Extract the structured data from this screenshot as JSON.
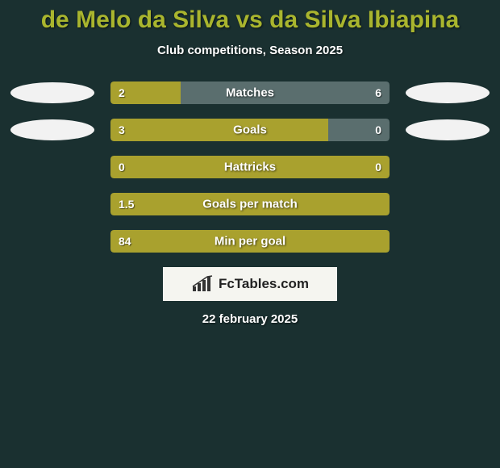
{
  "background_color": "#1a3030",
  "title": {
    "text": "de Melo da Silva vs da Silva Ibiapina",
    "color": "#a9b52e",
    "fontsize": 30
  },
  "subtitle": "Club competitions, Season 2025",
  "bar_colors": {
    "olive": "#a9a12e",
    "track": "#5a6e6e"
  },
  "ellipse_color": "#f2f2f2",
  "stats": [
    {
      "label": "Matches",
      "left_value": "2",
      "right_value": "6",
      "left_pct": 25,
      "right_pct": 75,
      "left_color": "#a9a12e",
      "right_color": "#5a6e6e",
      "show_ellipses": true
    },
    {
      "label": "Goals",
      "left_value": "3",
      "right_value": "0",
      "left_pct": 78,
      "right_pct": 22,
      "left_color": "#a9a12e",
      "right_color": "#5a6e6e",
      "show_ellipses": true
    },
    {
      "label": "Hattricks",
      "left_value": "0",
      "right_value": "0",
      "left_pct": 100,
      "right_pct": 0,
      "left_color": "#a9a12e",
      "right_color": "#5a6e6e",
      "show_ellipses": false
    },
    {
      "label": "Goals per match",
      "left_value": "1.5",
      "right_value": "",
      "left_pct": 100,
      "right_pct": 0,
      "left_color": "#a9a12e",
      "right_color": "#5a6e6e",
      "show_ellipses": false
    },
    {
      "label": "Min per goal",
      "left_value": "84",
      "right_value": "",
      "left_pct": 100,
      "right_pct": 0,
      "left_color": "#a9a12e",
      "right_color": "#5a6e6e",
      "show_ellipses": false
    }
  ],
  "logo": {
    "text": "FcTables.com",
    "background": "#f5f5f0",
    "text_color": "#222"
  },
  "date": "22 february 2025"
}
